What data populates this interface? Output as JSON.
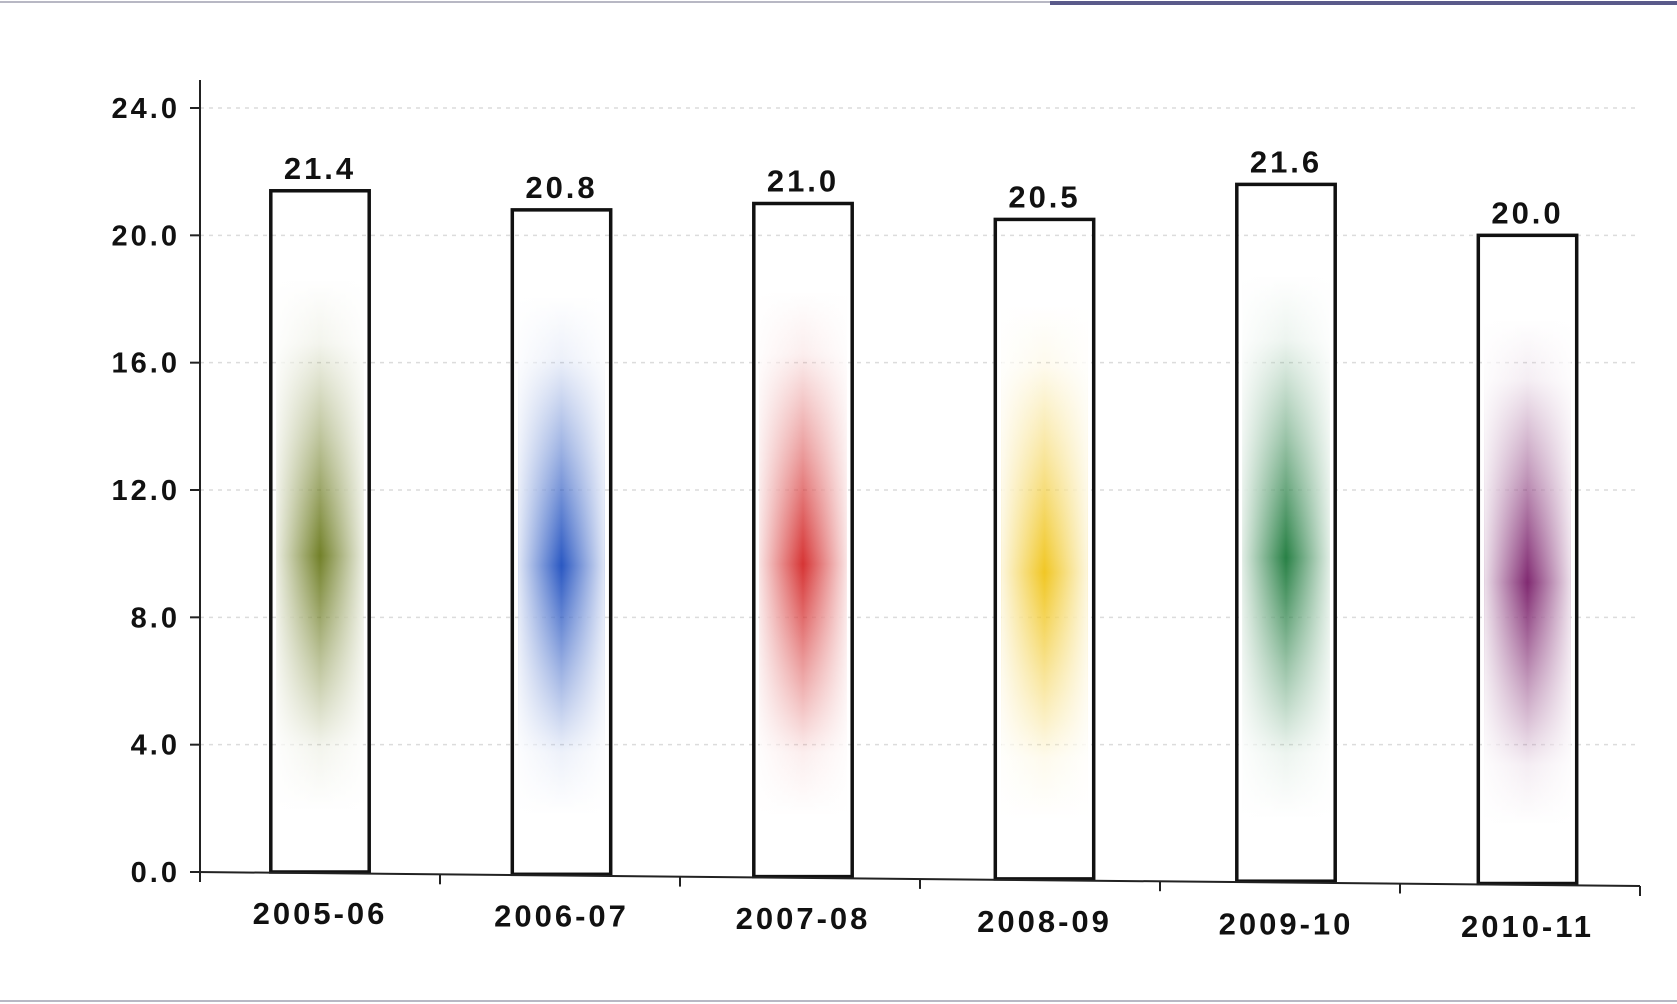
{
  "chart_data": {
    "type": "bar",
    "categories": [
      "2005-06",
      "2006-07",
      "2007-08",
      "2008-09",
      "2009-10",
      "2010-11"
    ],
    "values": [
      21.4,
      20.8,
      21.0,
      20.5,
      21.6,
      20.0
    ],
    "value_labels": [
      "21.4",
      "20.8",
      "21.0",
      "20.5",
      "21.6",
      "20.0"
    ],
    "y_ticks": [
      "0.0",
      "4.0",
      "8.0",
      "12.0",
      "16.0",
      "20.0",
      "24.0"
    ],
    "y_tick_values": [
      0,
      4,
      8,
      12,
      16,
      20,
      24
    ],
    "ylim": [
      0,
      24
    ],
    "grid": true,
    "legend": "none",
    "bar_colors": [
      "#6b7a1e",
      "#1f4fbf",
      "#d42a2a",
      "#f0c419",
      "#1d7a3c",
      "#7a1f6a"
    ],
    "title": "",
    "xlabel": "",
    "ylabel": ""
  }
}
